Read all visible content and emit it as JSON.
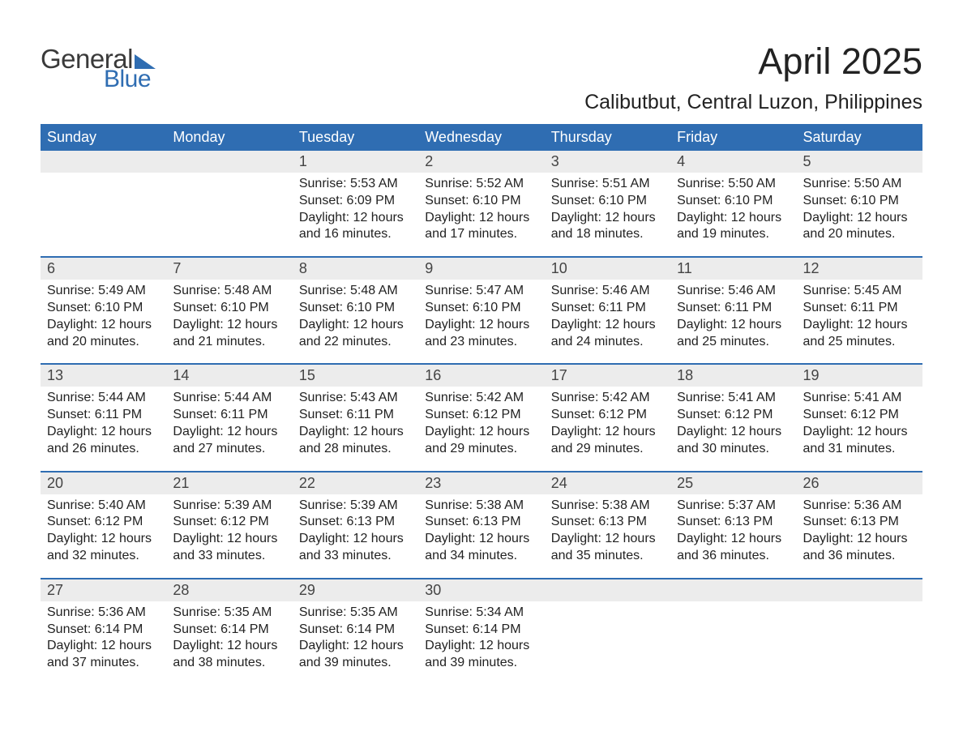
{
  "logo": {
    "word1": "General",
    "word2": "Blue"
  },
  "header": {
    "month_title": "April 2025",
    "location": "Calibutbut, Central Luzon, Philippines"
  },
  "colors": {
    "brand_blue": "#2f6db2",
    "header_bg": "#2f6db2",
    "daynum_bg": "#ececec",
    "page_bg": "#ffffff",
    "text": "#222222"
  },
  "day_names": [
    "Sunday",
    "Monday",
    "Tuesday",
    "Wednesday",
    "Thursday",
    "Friday",
    "Saturday"
  ],
  "weeks": [
    [
      {
        "num": "",
        "sunrise": "",
        "sunset": "",
        "daylight": ""
      },
      {
        "num": "",
        "sunrise": "",
        "sunset": "",
        "daylight": ""
      },
      {
        "num": "1",
        "sunrise": "Sunrise: 5:53 AM",
        "sunset": "Sunset: 6:09 PM",
        "daylight": "Daylight: 12 hours and 16 minutes."
      },
      {
        "num": "2",
        "sunrise": "Sunrise: 5:52 AM",
        "sunset": "Sunset: 6:10 PM",
        "daylight": "Daylight: 12 hours and 17 minutes."
      },
      {
        "num": "3",
        "sunrise": "Sunrise: 5:51 AM",
        "sunset": "Sunset: 6:10 PM",
        "daylight": "Daylight: 12 hours and 18 minutes."
      },
      {
        "num": "4",
        "sunrise": "Sunrise: 5:50 AM",
        "sunset": "Sunset: 6:10 PM",
        "daylight": "Daylight: 12 hours and 19 minutes."
      },
      {
        "num": "5",
        "sunrise": "Sunrise: 5:50 AM",
        "sunset": "Sunset: 6:10 PM",
        "daylight": "Daylight: 12 hours and 20 minutes."
      }
    ],
    [
      {
        "num": "6",
        "sunrise": "Sunrise: 5:49 AM",
        "sunset": "Sunset: 6:10 PM",
        "daylight": "Daylight: 12 hours and 20 minutes."
      },
      {
        "num": "7",
        "sunrise": "Sunrise: 5:48 AM",
        "sunset": "Sunset: 6:10 PM",
        "daylight": "Daylight: 12 hours and 21 minutes."
      },
      {
        "num": "8",
        "sunrise": "Sunrise: 5:48 AM",
        "sunset": "Sunset: 6:10 PM",
        "daylight": "Daylight: 12 hours and 22 minutes."
      },
      {
        "num": "9",
        "sunrise": "Sunrise: 5:47 AM",
        "sunset": "Sunset: 6:10 PM",
        "daylight": "Daylight: 12 hours and 23 minutes."
      },
      {
        "num": "10",
        "sunrise": "Sunrise: 5:46 AM",
        "sunset": "Sunset: 6:11 PM",
        "daylight": "Daylight: 12 hours and 24 minutes."
      },
      {
        "num": "11",
        "sunrise": "Sunrise: 5:46 AM",
        "sunset": "Sunset: 6:11 PM",
        "daylight": "Daylight: 12 hours and 25 minutes."
      },
      {
        "num": "12",
        "sunrise": "Sunrise: 5:45 AM",
        "sunset": "Sunset: 6:11 PM",
        "daylight": "Daylight: 12 hours and 25 minutes."
      }
    ],
    [
      {
        "num": "13",
        "sunrise": "Sunrise: 5:44 AM",
        "sunset": "Sunset: 6:11 PM",
        "daylight": "Daylight: 12 hours and 26 minutes."
      },
      {
        "num": "14",
        "sunrise": "Sunrise: 5:44 AM",
        "sunset": "Sunset: 6:11 PM",
        "daylight": "Daylight: 12 hours and 27 minutes."
      },
      {
        "num": "15",
        "sunrise": "Sunrise: 5:43 AM",
        "sunset": "Sunset: 6:11 PM",
        "daylight": "Daylight: 12 hours and 28 minutes."
      },
      {
        "num": "16",
        "sunrise": "Sunrise: 5:42 AM",
        "sunset": "Sunset: 6:12 PM",
        "daylight": "Daylight: 12 hours and 29 minutes."
      },
      {
        "num": "17",
        "sunrise": "Sunrise: 5:42 AM",
        "sunset": "Sunset: 6:12 PM",
        "daylight": "Daylight: 12 hours and 29 minutes."
      },
      {
        "num": "18",
        "sunrise": "Sunrise: 5:41 AM",
        "sunset": "Sunset: 6:12 PM",
        "daylight": "Daylight: 12 hours and 30 minutes."
      },
      {
        "num": "19",
        "sunrise": "Sunrise: 5:41 AM",
        "sunset": "Sunset: 6:12 PM",
        "daylight": "Daylight: 12 hours and 31 minutes."
      }
    ],
    [
      {
        "num": "20",
        "sunrise": "Sunrise: 5:40 AM",
        "sunset": "Sunset: 6:12 PM",
        "daylight": "Daylight: 12 hours and 32 minutes."
      },
      {
        "num": "21",
        "sunrise": "Sunrise: 5:39 AM",
        "sunset": "Sunset: 6:12 PM",
        "daylight": "Daylight: 12 hours and 33 minutes."
      },
      {
        "num": "22",
        "sunrise": "Sunrise: 5:39 AM",
        "sunset": "Sunset: 6:13 PM",
        "daylight": "Daylight: 12 hours and 33 minutes."
      },
      {
        "num": "23",
        "sunrise": "Sunrise: 5:38 AM",
        "sunset": "Sunset: 6:13 PM",
        "daylight": "Daylight: 12 hours and 34 minutes."
      },
      {
        "num": "24",
        "sunrise": "Sunrise: 5:38 AM",
        "sunset": "Sunset: 6:13 PM",
        "daylight": "Daylight: 12 hours and 35 minutes."
      },
      {
        "num": "25",
        "sunrise": "Sunrise: 5:37 AM",
        "sunset": "Sunset: 6:13 PM",
        "daylight": "Daylight: 12 hours and 36 minutes."
      },
      {
        "num": "26",
        "sunrise": "Sunrise: 5:36 AM",
        "sunset": "Sunset: 6:13 PM",
        "daylight": "Daylight: 12 hours and 36 minutes."
      }
    ],
    [
      {
        "num": "27",
        "sunrise": "Sunrise: 5:36 AM",
        "sunset": "Sunset: 6:14 PM",
        "daylight": "Daylight: 12 hours and 37 minutes."
      },
      {
        "num": "28",
        "sunrise": "Sunrise: 5:35 AM",
        "sunset": "Sunset: 6:14 PM",
        "daylight": "Daylight: 12 hours and 38 minutes."
      },
      {
        "num": "29",
        "sunrise": "Sunrise: 5:35 AM",
        "sunset": "Sunset: 6:14 PM",
        "daylight": "Daylight: 12 hours and 39 minutes."
      },
      {
        "num": "30",
        "sunrise": "Sunrise: 5:34 AM",
        "sunset": "Sunset: 6:14 PM",
        "daylight": "Daylight: 12 hours and 39 minutes."
      },
      {
        "num": "",
        "sunrise": "",
        "sunset": "",
        "daylight": ""
      },
      {
        "num": "",
        "sunrise": "",
        "sunset": "",
        "daylight": ""
      },
      {
        "num": "",
        "sunrise": "",
        "sunset": "",
        "daylight": ""
      }
    ]
  ]
}
